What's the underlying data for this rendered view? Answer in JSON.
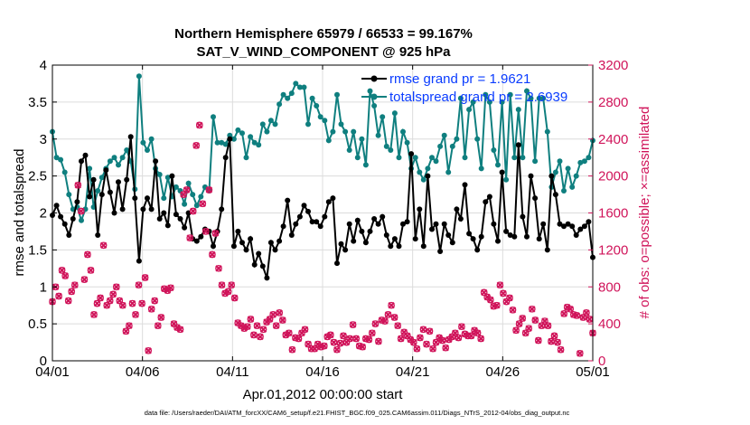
{
  "chart_data": {
    "type": "line",
    "title": "Northern Hemisphere 65979 / 66533 = 99.167%",
    "subtitle": "SAT_V_WIND_COMPONENT @ 925 hPa",
    "xlabel": "Apr.01,2012 00:00:00 start",
    "ylabel": "rmse and totalspread",
    "y2label": "# of obs: o=possible; ×=assimilated",
    "x_ticks": [
      "04/01",
      "04/06",
      "04/11",
      "04/16",
      "04/21",
      "04/26",
      "05/01"
    ],
    "y_ticks": [
      "0",
      "0.5",
      "1",
      "1.5",
      "2",
      "2.5",
      "3",
      "3.5",
      "4"
    ],
    "y2_ticks": [
      "0",
      "400",
      "800",
      "1200",
      "1600",
      "2000",
      "2400",
      "2800",
      "3200"
    ],
    "xlim": [
      0,
      30
    ],
    "ylim": [
      0,
      4
    ],
    "y2lim": [
      0,
      3200
    ],
    "grid": true,
    "legend_position": "top-right",
    "footnote": "data file: /Users/raeder/DAI/ATM_forcXX/CAM6_setup/f.e21.FHIST_BGC.f09_025.CAM6assim.011/Diags_NTrS_2012-04/obs_diag_output.nc",
    "colors": {
      "rmse": "#000000",
      "spread": "#0f7f7f",
      "obs": "#d0145a",
      "legend_text": "#0a3cff"
    },
    "series": [
      {
        "name": "rmse grand pr = 1.9621",
        "color": "#000000",
        "values": [
          1.97,
          2.1,
          1.95,
          1.85,
          1.7,
          1.92,
          2.15,
          2.7,
          2.78,
          2.22,
          2.45,
          1.7,
          2.25,
          2.58,
          2.28,
          2.0,
          2.42,
          2.05,
          2.45,
          3.03,
          2.2,
          1.35,
          2.05,
          2.2,
          2.05,
          2.7,
          1.92,
          2.0,
          1.83,
          2.5,
          1.98,
          1.92,
          1.8,
          2.0,
          1.65,
          1.62,
          1.68,
          1.78,
          1.75,
          1.55,
          1.75,
          2.05,
          2.75,
          3.0,
          1.55,
          1.75,
          1.6,
          1.5,
          1.65,
          1.3,
          1.45,
          1.28,
          1.12,
          1.6,
          1.5,
          1.62,
          1.82,
          2.17,
          1.7,
          1.85,
          1.95,
          2.1,
          2.02,
          1.88,
          1.88,
          1.82,
          1.95,
          2.15,
          2.2,
          1.32,
          1.58,
          1.5,
          1.85,
          1.62,
          1.9,
          1.75,
          1.6,
          1.75,
          1.92,
          1.85,
          1.95,
          1.7,
          1.55,
          1.65,
          1.55,
          1.85,
          1.88,
          2.8,
          1.65,
          2.05,
          1.55,
          2.5,
          1.78,
          1.85,
          1.48,
          1.85,
          1.7,
          1.6,
          2.05,
          1.92,
          2.38,
          1.72,
          1.65,
          1.5,
          1.68,
          2.15,
          2.22,
          1.85,
          1.62,
          2.55,
          1.75,
          1.7,
          1.68,
          2.92,
          1.95,
          1.68,
          2.5,
          2.2,
          1.65,
          1.85,
          1.5,
          2.5,
          2.25,
          1.85,
          1.82,
          1.85,
          1.82,
          1.7,
          1.78,
          1.82,
          1.88,
          1.4
        ]
      },
      {
        "name": "totalspread grand pr = 2.6939",
        "color": "#0f7f7f",
        "values": [
          3.1,
          2.75,
          2.72,
          2.55,
          2.25,
          2.05,
          2.08,
          1.9,
          2.05,
          2.6,
          2.08,
          2.3,
          2.48,
          2.6,
          2.7,
          2.75,
          2.65,
          2.75,
          2.85,
          2.7,
          2.32,
          3.85,
          2.95,
          2.85,
          3.0,
          2.6,
          2.52,
          2.2,
          2.48,
          2.22,
          2.35,
          2.3,
          2.12,
          2.4,
          2.25,
          2.1,
          2.22,
          2.35,
          2.3,
          3.3,
          2.95,
          2.95,
          2.93,
          3.05,
          3.0,
          3.12,
          3.08,
          2.75,
          3.03,
          2.95,
          2.92,
          3.2,
          3.1,
          3.25,
          3.2,
          3.47,
          3.6,
          3.55,
          3.62,
          3.75,
          3.7,
          3.7,
          3.2,
          3.55,
          3.45,
          3.3,
          3.25,
          2.98,
          3.1,
          3.6,
          3.2,
          3.1,
          2.85,
          3.1,
          2.75,
          3.0,
          2.65,
          3.65,
          3.45,
          3.05,
          3.3,
          2.9,
          2.85,
          3.35,
          2.75,
          3.1,
          2.95,
          2.6,
          2.75,
          2.55,
          2.45,
          2.6,
          2.75,
          2.7,
          2.9,
          3.05,
          2.55,
          2.9,
          3.0,
          3.55,
          2.75,
          3.4,
          3.5,
          3.0,
          2.6,
          3.6,
          3.5,
          2.85,
          2.65,
          3.5,
          2.45,
          3.6,
          2.75,
          3.4,
          2.75,
          3.65,
          3.55,
          2.7,
          3.55,
          3.55,
          3.1,
          2.35,
          2.55,
          2.7,
          2.3,
          2.6,
          2.35,
          2.5,
          2.68,
          2.7,
          2.75,
          2.98
        ]
      },
      {
        "name": "# of obs: o=possible; ×=assimilated",
        "axis": "right",
        "color": "#d0145a",
        "values": [
          640,
          800,
          700,
          980,
          920,
          650,
          750,
          820,
          1900,
          1620,
          880,
          1150,
          980,
          500,
          620,
          680,
          1250,
          600,
          650,
          720,
          800,
          650,
          600,
          320,
          380,
          620,
          500,
          820,
          620,
          900,
          110,
          560,
          650,
          380,
          470,
          780,
          760,
          790,
          400,
          360,
          340,
          1800,
          1850,
          1330,
          1620,
          2330,
          2550,
          1700,
          1400,
          1850,
          1150,
          1380,
          1000,
          820,
          730,
          750,
          820,
          680,
          410,
          380,
          350,
          370,
          450,
          280,
          380,
          260,
          340,
          420,
          450,
          500,
          380,
          520,
          440,
          280,
          300,
          120,
          250,
          240,
          300,
          340,
          180,
          130,
          130,
          180,
          150,
          160,
          260,
          280,
          200,
          120,
          190,
          270,
          200,
          240,
          390,
          240,
          160,
          150,
          240,
          230,
          300,
          400,
          210,
          440,
          430,
          500,
          600,
          470,
          380,
          240,
          310,
          270,
          230,
          200,
          130,
          250,
          340,
          180,
          320,
          130,
          200,
          250,
          220,
          140,
          230,
          260,
          300,
          250,
          370,
          290,
          270,
          270,
          330,
          300,
          240,
          740,
          690,
          660,
          590,
          600,
          820,
          730,
          640,
          680,
          550,
          330,
          400,
          460,
          300,
          350,
          560,
          440,
          220,
          380,
          430,
          380,
          210,
          270,
          200,
          120,
          510,
          580,
          560,
          500,
          490,
          80,
          470,
          520,
          450,
          300
        ]
      }
    ]
  }
}
